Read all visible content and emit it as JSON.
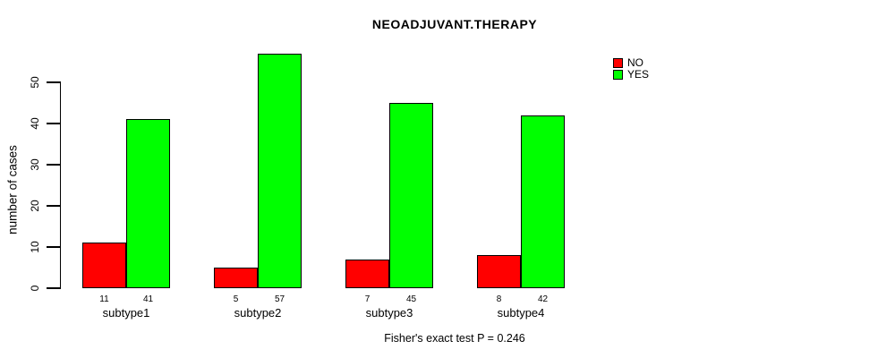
{
  "chart_data": {
    "type": "bar",
    "title": "NEOADJUVANT.THERAPY",
    "xlabel": "",
    "ylabel": "number of cases",
    "categories": [
      "subtype1",
      "subtype2",
      "subtype3",
      "subtype4"
    ],
    "series": [
      {
        "name": "NO",
        "color": "#FF0000",
        "values": [
          11,
          5,
          7,
          8
        ]
      },
      {
        "name": "YES",
        "color": "#00FF00",
        "values": [
          41,
          57,
          45,
          42
        ]
      }
    ],
    "bar_value_labels": true,
    "yticks": [
      0,
      10,
      20,
      30,
      40,
      50
    ],
    "ylim": [
      0,
      57
    ],
    "grid": false,
    "legend_position": "top-right",
    "annotation": "Fisher's exact test P = 0.246"
  }
}
